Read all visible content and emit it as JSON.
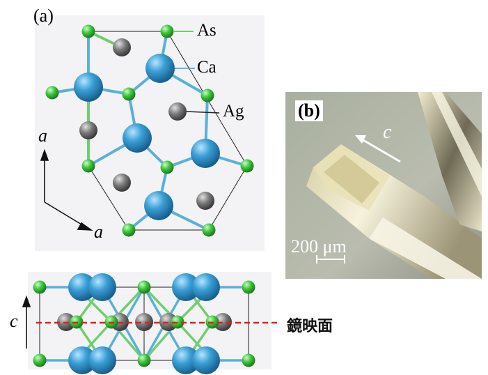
{
  "panel_a": {
    "label": "(a)",
    "atoms": {
      "as": "As",
      "ca": "Ca",
      "ag": "Ag"
    },
    "axes": {
      "a1": "a",
      "a2": "a"
    }
  },
  "panel_b": {
    "label": "(b)",
    "axis": "c",
    "scale": "200 μm"
  },
  "panel_c": {
    "axis": "c",
    "mirror_plane": "鏡映面"
  },
  "colors": {
    "ca": "#3a9fd6",
    "as": "#3cc43c",
    "ag": "#7a7a7a",
    "mirror_line": "#e02020"
  }
}
